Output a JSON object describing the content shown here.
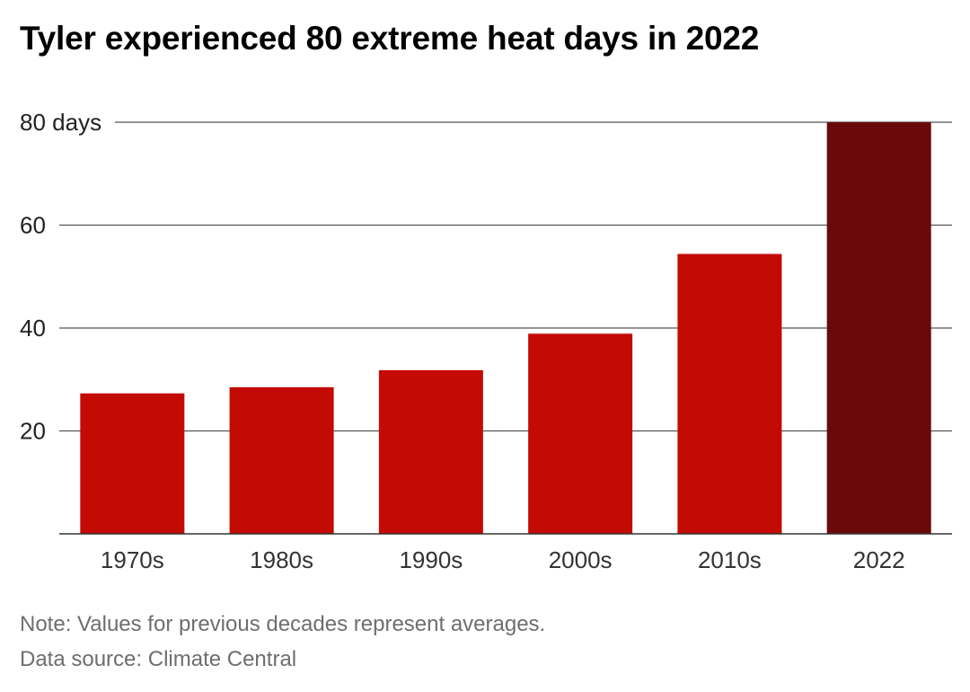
{
  "chart_data": {
    "type": "bar",
    "title": "Tyler experienced 80 extreme heat days in 2022",
    "categories": [
      "1970s",
      "1980s",
      "1990s",
      "2000s",
      "2010s",
      "2022"
    ],
    "values": [
      27.3,
      28.5,
      31.8,
      38.9,
      54.4,
      80
    ],
    "ylim": [
      0,
      80
    ],
    "yticks": [
      20,
      40,
      60,
      80
    ],
    "ytick_labels": [
      "20",
      "40",
      "60",
      "80 days"
    ],
    "grid": true,
    "colors": {
      "bar": "#c30a05",
      "highlight_bar": "#6a090a",
      "gridline": "#555555",
      "axis": "#333333"
    },
    "highlight_category": "2022",
    "note": "Note: Values for previous decades represent averages.",
    "source": "Data source: Climate Central"
  }
}
